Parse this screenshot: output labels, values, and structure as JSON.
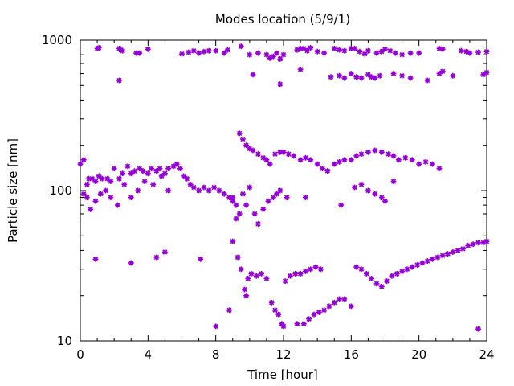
{
  "chart_data": {
    "type": "scatter",
    "title": "Modes location (5/9/1)",
    "xlabel": "Time [hour]",
    "ylabel": "Particle size [nm]",
    "xlim": [
      0,
      24
    ],
    "ylim": [
      10,
      1000
    ],
    "y_scale": "log",
    "grid": false,
    "legend": "none",
    "x_ticks": [
      0,
      4,
      8,
      12,
      16,
      20,
      24
    ],
    "x_tick_labels": [
      "0",
      "4",
      "8",
      "12",
      "16",
      "20",
      "24"
    ],
    "y_ticks": [
      10,
      100,
      1000
    ],
    "y_tick_labels": [
      "10",
      "100",
      "1000"
    ],
    "marker_color": "#9400d3",
    "series": [
      {
        "points": [
          [
            1.0,
            880
          ],
          [
            1.1,
            890
          ],
          [
            2.3,
            880
          ],
          [
            2.4,
            860
          ],
          [
            2.5,
            850
          ],
          [
            3.3,
            820
          ],
          [
            3.5,
            820
          ],
          [
            4.0,
            870
          ],
          [
            6.0,
            810
          ],
          [
            6.4,
            830
          ],
          [
            6.7,
            850
          ],
          [
            7.0,
            820
          ],
          [
            7.3,
            840
          ],
          [
            7.6,
            850
          ],
          [
            8.0,
            850
          ],
          [
            8.5,
            820
          ],
          [
            8.7,
            860
          ],
          [
            9.5,
            910
          ],
          [
            10.0,
            800
          ],
          [
            10.5,
            820
          ],
          [
            11.0,
            800
          ],
          [
            11.2,
            760
          ],
          [
            11.4,
            780
          ],
          [
            11.6,
            820
          ],
          [
            11.8,
            750
          ],
          [
            12.0,
            800
          ],
          [
            12.8,
            860
          ],
          [
            13.0,
            880
          ],
          [
            13.2,
            880
          ],
          [
            13.4,
            850
          ],
          [
            13.6,
            890
          ],
          [
            14.0,
            840
          ],
          [
            14.4,
            820
          ],
          [
            15.0,
            880
          ],
          [
            15.3,
            860
          ],
          [
            15.6,
            850
          ],
          [
            16.0,
            880
          ],
          [
            16.2,
            880
          ],
          [
            16.5,
            840
          ],
          [
            16.8,
            810
          ],
          [
            17.0,
            850
          ],
          [
            17.5,
            820
          ],
          [
            17.8,
            840
          ],
          [
            18.0,
            870
          ],
          [
            18.3,
            850
          ],
          [
            18.6,
            820
          ],
          [
            19.0,
            800
          ],
          [
            19.5,
            820
          ],
          [
            20.0,
            820
          ],
          [
            21.2,
            880
          ],
          [
            21.4,
            870
          ],
          [
            22.5,
            850
          ],
          [
            22.8,
            840
          ],
          [
            23.0,
            820
          ],
          [
            23.5,
            830
          ],
          [
            24.0,
            840
          ],
          [
            2.3,
            540
          ],
          [
            10.2,
            590
          ],
          [
            11.8,
            510
          ],
          [
            13.0,
            640
          ],
          [
            14.8,
            570
          ],
          [
            15.3,
            580
          ],
          [
            15.6,
            560
          ],
          [
            16.0,
            600
          ],
          [
            16.3,
            570
          ],
          [
            16.6,
            560
          ],
          [
            17.0,
            590
          ],
          [
            17.2,
            570
          ],
          [
            17.4,
            560
          ],
          [
            17.7,
            580
          ],
          [
            18.5,
            600
          ],
          [
            19.0,
            580
          ],
          [
            19.5,
            560
          ],
          [
            20.5,
            540
          ],
          [
            21.2,
            600
          ],
          [
            21.4,
            620
          ],
          [
            22.0,
            580
          ],
          [
            23.8,
            590
          ],
          [
            24.0,
            610
          ],
          [
            0.0,
            150
          ],
          [
            0.2,
            160
          ],
          [
            0.4,
            110
          ],
          [
            0.5,
            120
          ],
          [
            0.7,
            120
          ],
          [
            0.9,
            115
          ],
          [
            1.1,
            125
          ],
          [
            1.3,
            120
          ],
          [
            1.6,
            120
          ],
          [
            1.8,
            115
          ],
          [
            2.0,
            140
          ],
          [
            2.3,
            120
          ],
          [
            2.5,
            130
          ],
          [
            2.8,
            145
          ],
          [
            3.0,
            130
          ],
          [
            3.2,
            135
          ],
          [
            3.5,
            140
          ],
          [
            3.7,
            135
          ],
          [
            4.0,
            130
          ],
          [
            4.2,
            140
          ],
          [
            4.5,
            135
          ],
          [
            4.7,
            140
          ],
          [
            5.0,
            130
          ],
          [
            5.2,
            140
          ],
          [
            5.5,
            145
          ],
          [
            5.7,
            150
          ],
          [
            5.9,
            140
          ],
          [
            6.1,
            125
          ],
          [
            6.3,
            120
          ],
          [
            6.5,
            110
          ],
          [
            6.7,
            105
          ],
          [
            7.0,
            100
          ],
          [
            7.3,
            105
          ],
          [
            7.6,
            100
          ],
          [
            7.9,
            105
          ],
          [
            8.2,
            100
          ],
          [
            8.5,
            95
          ],
          [
            8.8,
            90
          ],
          [
            9.0,
            85
          ],
          [
            9.2,
            80
          ],
          [
            9.4,
            240
          ],
          [
            9.6,
            220
          ],
          [
            9.8,
            200
          ],
          [
            10.0,
            190
          ],
          [
            10.2,
            185
          ],
          [
            10.5,
            175
          ],
          [
            10.8,
            165
          ],
          [
            11.0,
            160
          ],
          [
            11.2,
            150
          ],
          [
            11.5,
            175
          ],
          [
            11.8,
            180
          ],
          [
            12.0,
            180
          ],
          [
            12.3,
            175
          ],
          [
            12.6,
            170
          ],
          [
            13.0,
            160
          ],
          [
            13.3,
            165
          ],
          [
            13.6,
            160
          ],
          [
            14.0,
            150
          ],
          [
            14.3,
            140
          ],
          [
            14.6,
            135
          ],
          [
            15.0,
            150
          ],
          [
            15.3,
            155
          ],
          [
            15.6,
            160
          ],
          [
            16.0,
            160
          ],
          [
            16.3,
            170
          ],
          [
            16.6,
            175
          ],
          [
            17.0,
            180
          ],
          [
            17.4,
            185
          ],
          [
            17.8,
            180
          ],
          [
            18.2,
            175
          ],
          [
            18.5,
            170
          ],
          [
            18.8,
            160
          ],
          [
            19.2,
            165
          ],
          [
            19.6,
            160
          ],
          [
            20.0,
            150
          ],
          [
            20.4,
            155
          ],
          [
            20.8,
            150
          ],
          [
            21.2,
            140
          ],
          [
            0.2,
            95
          ],
          [
            0.4,
            90
          ],
          [
            0.6,
            75
          ],
          [
            0.9,
            85
          ],
          [
            1.2,
            95
          ],
          [
            1.5,
            100
          ],
          [
            1.8,
            90
          ],
          [
            2.2,
            80
          ],
          [
            2.6,
            110
          ],
          [
            3.0,
            90
          ],
          [
            3.4,
            100
          ],
          [
            3.8,
            115
          ],
          [
            4.3,
            110
          ],
          [
            4.8,
            125
          ],
          [
            5.2,
            100
          ],
          [
            9.0,
            90
          ],
          [
            9.2,
            65
          ],
          [
            9.4,
            70
          ],
          [
            9.6,
            95
          ],
          [
            9.8,
            80
          ],
          [
            10.0,
            105
          ],
          [
            10.3,
            70
          ],
          [
            10.5,
            60
          ],
          [
            10.8,
            75
          ],
          [
            11.1,
            85
          ],
          [
            11.4,
            90
          ],
          [
            11.6,
            95
          ],
          [
            11.8,
            100
          ],
          [
            12.2,
            90
          ],
          [
            13.3,
            90
          ],
          [
            15.4,
            80
          ],
          [
            16.2,
            105
          ],
          [
            16.6,
            110
          ],
          [
            17.0,
            100
          ],
          [
            17.4,
            95
          ],
          [
            17.8,
            90
          ],
          [
            18.0,
            85
          ],
          [
            18.5,
            115
          ],
          [
            0.9,
            35
          ],
          [
            3.0,
            33
          ],
          [
            4.5,
            36
          ],
          [
            5.0,
            39
          ],
          [
            7.1,
            35
          ],
          [
            9.0,
            46
          ],
          [
            9.3,
            36
          ],
          [
            9.5,
            30
          ],
          [
            9.7,
            22
          ],
          [
            9.9,
            26
          ],
          [
            10.1,
            28
          ],
          [
            10.4,
            27
          ],
          [
            10.7,
            28
          ],
          [
            11.0,
            26
          ],
          [
            11.3,
            18
          ],
          [
            11.5,
            16
          ],
          [
            11.7,
            15
          ],
          [
            11.9,
            13
          ],
          [
            12.1,
            25
          ],
          [
            12.4,
            27
          ],
          [
            12.7,
            28
          ],
          [
            13.0,
            28
          ],
          [
            13.3,
            29
          ],
          [
            13.6,
            30
          ],
          [
            13.9,
            31
          ],
          [
            14.2,
            30
          ],
          [
            12.0,
            12.5
          ],
          [
            12.8,
            13
          ],
          [
            13.2,
            13
          ],
          [
            13.5,
            14
          ],
          [
            13.8,
            15
          ],
          [
            14.1,
            15.5
          ],
          [
            14.4,
            16
          ],
          [
            14.7,
            17
          ],
          [
            15.0,
            18
          ],
          [
            15.3,
            19
          ],
          [
            15.6,
            19
          ],
          [
            16.0,
            17
          ],
          [
            16.3,
            31
          ],
          [
            16.6,
            30
          ],
          [
            16.9,
            28
          ],
          [
            17.2,
            26
          ],
          [
            17.5,
            24
          ],
          [
            17.8,
            23
          ],
          [
            18.1,
            25
          ],
          [
            18.4,
            27
          ],
          [
            18.7,
            28
          ],
          [
            19.0,
            29
          ],
          [
            19.3,
            30
          ],
          [
            19.6,
            31
          ],
          [
            19.9,
            32
          ],
          [
            20.2,
            33
          ],
          [
            20.5,
            34
          ],
          [
            20.8,
            35
          ],
          [
            21.1,
            36
          ],
          [
            21.4,
            37
          ],
          [
            21.7,
            38
          ],
          [
            22.0,
            39
          ],
          [
            22.3,
            40
          ],
          [
            22.6,
            41
          ],
          [
            22.9,
            43
          ],
          [
            23.2,
            44
          ],
          [
            23.5,
            45
          ],
          [
            23.8,
            45
          ],
          [
            24.0,
            46
          ],
          [
            23.5,
            12
          ],
          [
            8.0,
            12.5
          ],
          [
            8.8,
            16
          ],
          [
            9.8,
            20
          ]
        ]
      }
    ]
  }
}
